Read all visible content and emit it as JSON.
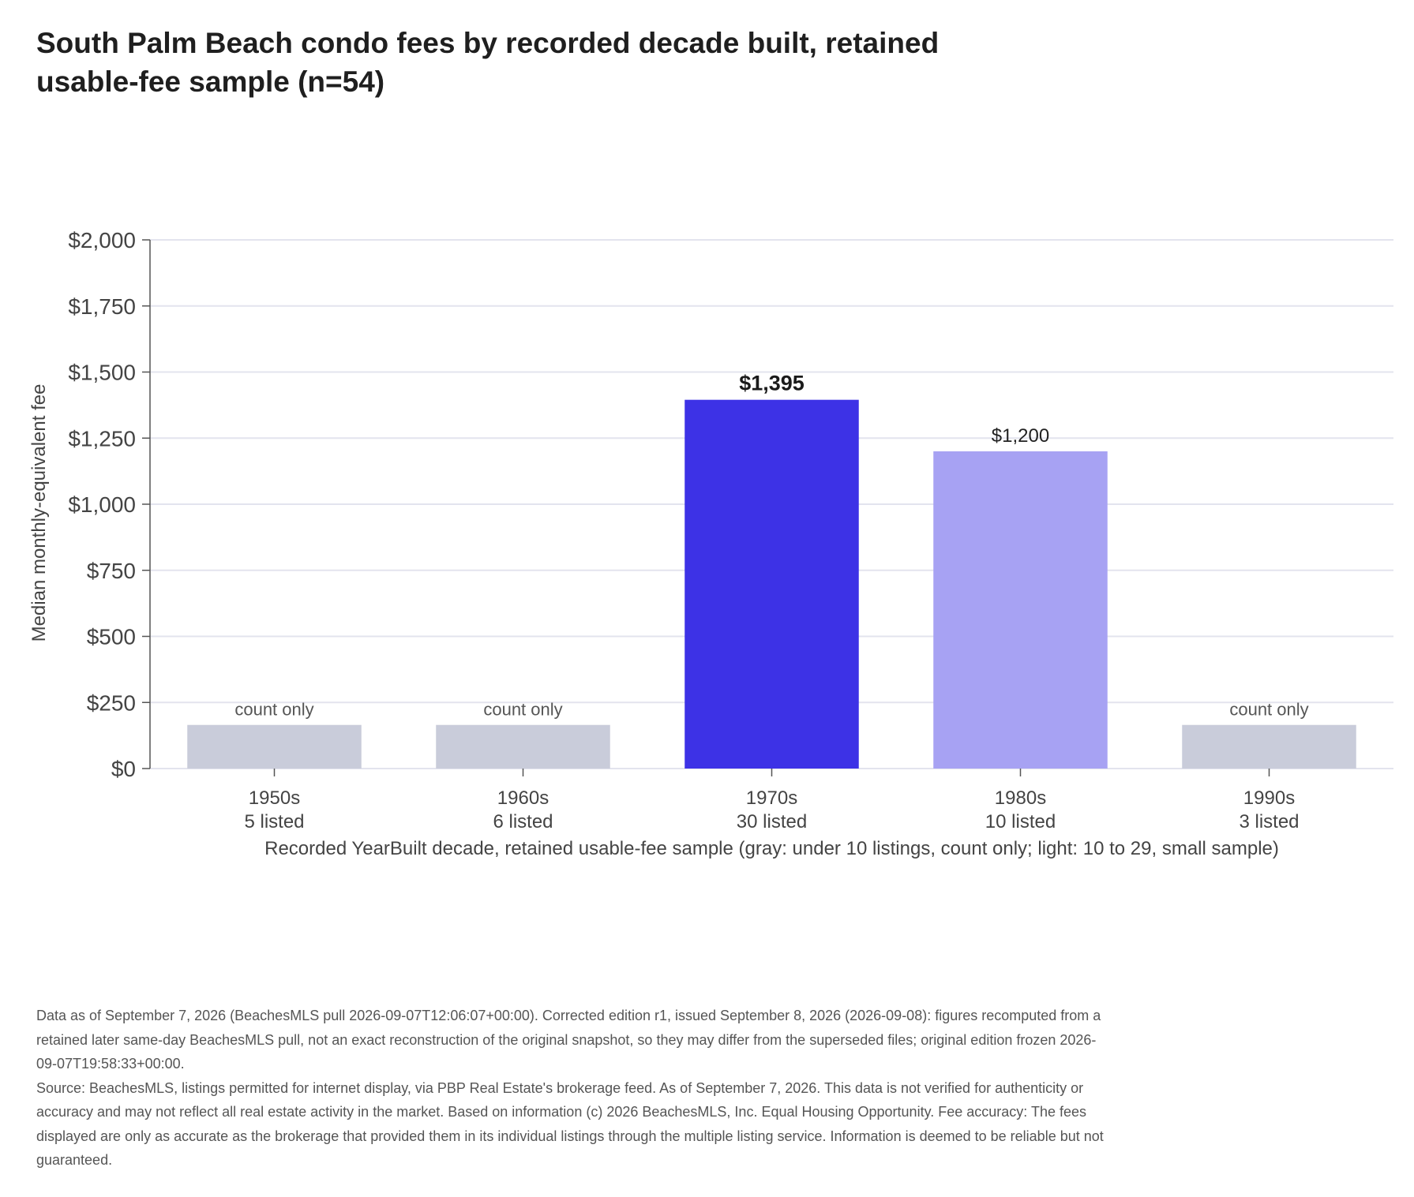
{
  "chart_data": {
    "type": "bar",
    "title": "South Palm Beach condo fees by recorded decade built, retained usable-fee sample (n=54)",
    "ylabel": "Median monthly-equivalent fee",
    "xlabel": "Recorded YearBuilt decade, retained usable-fee sample (gray: under 10 listings, count only; light: 10 to 29, small sample)",
    "ylim": [
      0,
      2000
    ],
    "yticks": [
      0,
      250,
      500,
      750,
      1000,
      1250,
      1500,
      1750,
      2000
    ],
    "ytick_labels": [
      "$0",
      "$250",
      "$500",
      "$750",
      "$1,000",
      "$1,250",
      "$1,500",
      "$1,750",
      "$2,000"
    ],
    "grid": true,
    "categories": [
      "1950s",
      "1960s",
      "1970s",
      "1980s",
      "1990s"
    ],
    "count_labels": [
      "5 listed",
      "6 listed",
      "30 listed",
      "10 listed",
      "3 listed"
    ],
    "values": [
      null,
      null,
      1395,
      1200,
      null
    ],
    "count_only_placeholder_value": 165,
    "value_labels": [
      "count only",
      "count only",
      "$1,395",
      "$1,200",
      "count only"
    ],
    "bar_styles": [
      "count-only",
      "count-only",
      "full",
      "small-sample",
      "count-only"
    ],
    "colors": {
      "full": "#3d32e6",
      "small-sample": "#a7a2f3",
      "count-only": "#c9ccda",
      "grid": "#e3e4ee",
      "axis": "#555555"
    }
  },
  "footnote": {
    "edition": "Data as of September 7, 2026 (BeachesMLS pull 2026-09-07T12:06:07+00:00). Corrected edition r1, issued September 8, 2026 (2026-09-08): figures recomputed from a retained later same-day BeachesMLS pull, not an exact reconstruction of the original snapshot, so they may differ from the superseded files; original edition frozen 2026-09-07T19:58:33+00:00.",
    "source": "Source: BeachesMLS, listings permitted for internet display, via PBP Real Estate's brokerage feed. As of September 7, 2026. This data is not verified for authenticity or accuracy and may not reflect all real estate activity in the market. Based on information (c) 2026 BeachesMLS, Inc. Equal Housing Opportunity. Fee accuracy: The fees displayed are only as accurate as the brokerage that provided them in its individual listings through the multiple listing service. Information is deemed to be reliable but not guaranteed."
  }
}
